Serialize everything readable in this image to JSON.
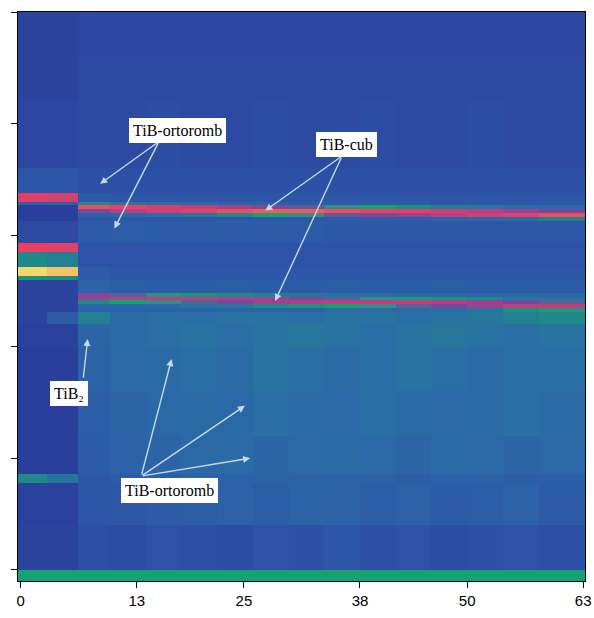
{
  "chart_data": {
    "type": "heatmap",
    "xlim": [
      -0.3,
      63.2
    ],
    "ylim": [
      -0.1,
      5.0
    ],
    "xticks": [
      0,
      13,
      25,
      38,
      50,
      63
    ],
    "yticks": [
      0,
      1,
      2,
      3,
      4,
      5
    ],
    "tick_labels": "x",
    "zlim": [
      0,
      100
    ],
    "x_edges": [
      -0.3,
      3,
      6.4,
      10,
      14,
      18,
      22,
      26,
      30,
      34,
      38,
      42,
      46,
      50,
      54,
      58,
      63.2
    ],
    "y_edges": [
      -0.1,
      0.0,
      0.4,
      0.78,
      0.86,
      1.2,
      1.6,
      2.0,
      2.2,
      2.31,
      2.345,
      2.38,
      2.415,
      2.45,
      2.485,
      2.6,
      2.63,
      2.71,
      2.85,
      2.93,
      3.13,
      3.165,
      3.2,
      3.235,
      3.27,
      3.3,
      3.38,
      3.6,
      4.2,
      4.6,
      5.0
    ],
    "z": [
      [
        45,
        45,
        45,
        45,
        45,
        45,
        45,
        45,
        45,
        45,
        45,
        45,
        45,
        45,
        45,
        45
      ],
      [
        20,
        20,
        24,
        23,
        25,
        24,
        23,
        25,
        24,
        26,
        24,
        25,
        23,
        24,
        25,
        24
      ],
      [
        19,
        19,
        26,
        27,
        28,
        29,
        30,
        29,
        31,
        30,
        29,
        30,
        28,
        29,
        30,
        28
      ],
      [
        40,
        36,
        27,
        28,
        29,
        30,
        30,
        31,
        30,
        31,
        30,
        29,
        30,
        30,
        29,
        29
      ],
      [
        18,
        18,
        28,
        30,
        31,
        32,
        33,
        31,
        32,
        33,
        32,
        31,
        33,
        32,
        31,
        32
      ],
      [
        18,
        18,
        29,
        31,
        32,
        33,
        32,
        34,
        33,
        32,
        34,
        33,
        32,
        33,
        34,
        33
      ],
      [
        18,
        18,
        30,
        32,
        33,
        34,
        33,
        35,
        34,
        33,
        34,
        35,
        34,
        33,
        34,
        34
      ],
      [
        19,
        19,
        31,
        33,
        34,
        35,
        34,
        35,
        36,
        35,
        34,
        35,
        36,
        35,
        34,
        35
      ],
      [
        20,
        28,
        38,
        33,
        34,
        34,
        35,
        35,
        34,
        35,
        35,
        34,
        35,
        36,
        38,
        40
      ],
      [
        20,
        20,
        30,
        30,
        30,
        30,
        30,
        30,
        30,
        32,
        32,
        33,
        34,
        36,
        42,
        48
      ],
      [
        20,
        20,
        32,
        32,
        33,
        35,
        36,
        40,
        42,
        45,
        50,
        55,
        60,
        66,
        72,
        74
      ],
      [
        20,
        20,
        40,
        45,
        50,
        55,
        60,
        66,
        70,
        72,
        72,
        72,
        70,
        66,
        60,
        55
      ],
      [
        20,
        20,
        66,
        70,
        72,
        72,
        70,
        66,
        60,
        55,
        50,
        45,
        42,
        40,
        36,
        35
      ],
      [
        20,
        20,
        62,
        55,
        48,
        42,
        40,
        38,
        36,
        35,
        34,
        33,
        33,
        32,
        32,
        32
      ],
      [
        20,
        20,
        30,
        29,
        28,
        28,
        29,
        28,
        28,
        29,
        28,
        28,
        29,
        28,
        28,
        28
      ],
      [
        42,
        40,
        28,
        27,
        27,
        27,
        27,
        27,
        27,
        27,
        27,
        27,
        27,
        27,
        27,
        27
      ],
      [
        98,
        96,
        28,
        26,
        26,
        26,
        26,
        26,
        26,
        26,
        26,
        26,
        26,
        26,
        26,
        26
      ],
      [
        40,
        38,
        25,
        25,
        25,
        25,
        25,
        25,
        25,
        25,
        25,
        25,
        25,
        25,
        25,
        25
      ],
      [
        82,
        80,
        25,
        25,
        25,
        25,
        25,
        25,
        25,
        25,
        25,
        25,
        25,
        25,
        25,
        25
      ],
      [
        22,
        22,
        28,
        29,
        28,
        28,
        28,
        28,
        28,
        27,
        27,
        27,
        27,
        27,
        27,
        27
      ],
      [
        18,
        18,
        26,
        26,
        26,
        26,
        26,
        27,
        27,
        28,
        28,
        29,
        30,
        32,
        34,
        38
      ],
      [
        18,
        18,
        30,
        32,
        34,
        36,
        40,
        45,
        50,
        56,
        62,
        66,
        72,
        76,
        80,
        84
      ],
      [
        18,
        18,
        62,
        70,
        76,
        80,
        84,
        86,
        86,
        84,
        82,
        80,
        76,
        72,
        66,
        60
      ],
      [
        18,
        18,
        84,
        82,
        78,
        74,
        68,
        62,
        56,
        50,
        45,
        42,
        38,
        36,
        34,
        32
      ],
      [
        30,
        30,
        40,
        36,
        34,
        32,
        30,
        30,
        29,
        28,
        28,
        28,
        27,
        27,
        27,
        27
      ],
      [
        80,
        78,
        27,
        26,
        26,
        26,
        26,
        26,
        26,
        26,
        26,
        26,
        26,
        26,
        26,
        26
      ],
      [
        26,
        26,
        24,
        24,
        24,
        24,
        24,
        24,
        24,
        24,
        24,
        24,
        24,
        24,
        24,
        24
      ],
      [
        21,
        21,
        22,
        22,
        23,
        22,
        22,
        23,
        22,
        22,
        23,
        22,
        22,
        23,
        22,
        22
      ],
      [
        20,
        20,
        22,
        22,
        22,
        22,
        22,
        22,
        22,
        22,
        22,
        22,
        22,
        22,
        22,
        22
      ],
      [
        20,
        20,
        21,
        21,
        21,
        21,
        21,
        21,
        21,
        21,
        21,
        21,
        21,
        21,
        21,
        21
      ]
    ],
    "annotations": [
      "TiB-ortoromb",
      "TiB-cub",
      "TiB₂",
      "TiB-ortoromb"
    ]
  }
}
